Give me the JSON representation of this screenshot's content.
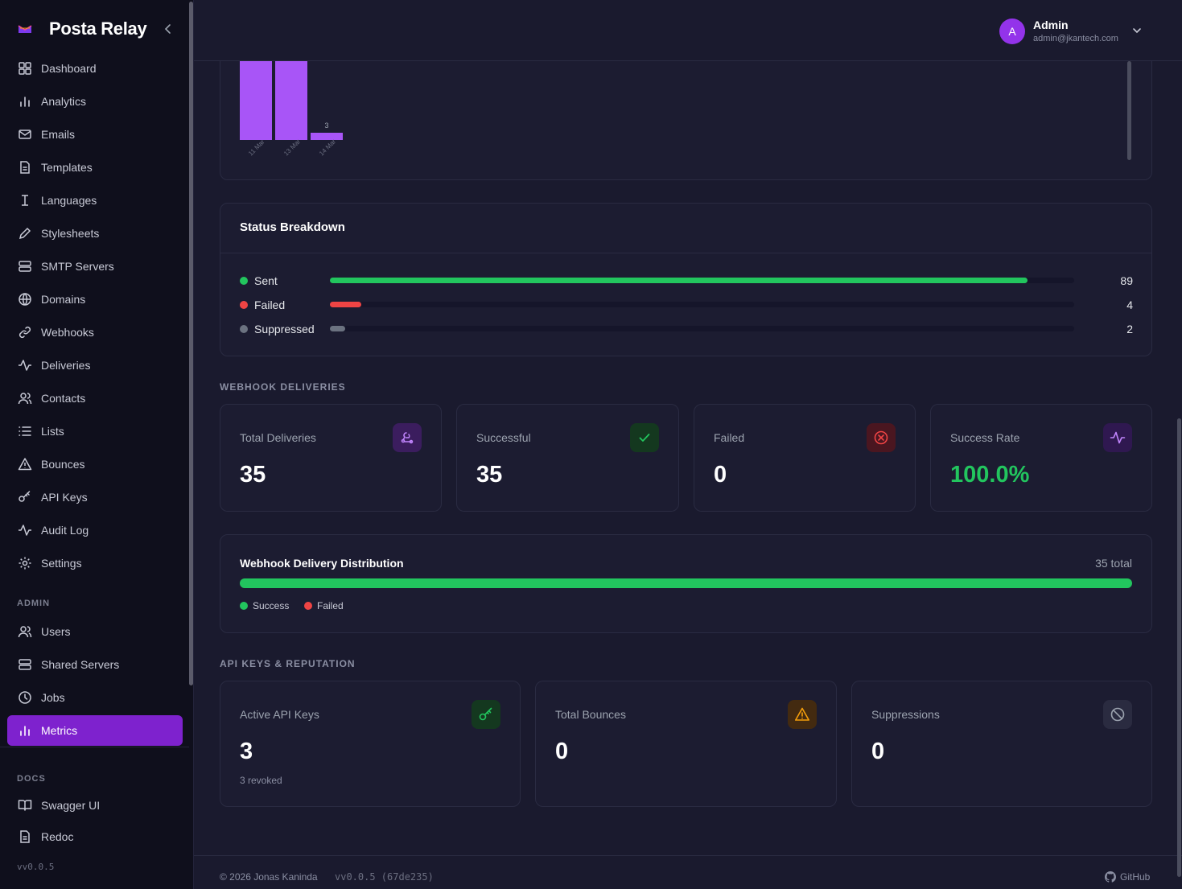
{
  "brand": {
    "name": "Posta Relay"
  },
  "sidebar": {
    "items": [
      {
        "label": "Dashboard",
        "icon": "dashboard-icon"
      },
      {
        "label": "Analytics",
        "icon": "bar-chart-icon"
      },
      {
        "label": "Emails",
        "icon": "mail-icon"
      },
      {
        "label": "Templates",
        "icon": "file-text-icon"
      },
      {
        "label": "Languages",
        "icon": "text-cursor-icon"
      },
      {
        "label": "Stylesheets",
        "icon": "pen-icon"
      },
      {
        "label": "SMTP Servers",
        "icon": "server-icon"
      },
      {
        "label": "Domains",
        "icon": "globe-icon"
      },
      {
        "label": "Webhooks",
        "icon": "link-icon"
      },
      {
        "label": "Deliveries",
        "icon": "activity-icon"
      },
      {
        "label": "Contacts",
        "icon": "users-icon"
      },
      {
        "label": "Lists",
        "icon": "list-icon"
      },
      {
        "label": "Bounces",
        "icon": "alert-triangle-icon"
      },
      {
        "label": "API Keys",
        "icon": "key-icon"
      },
      {
        "label": "Audit Log",
        "icon": "activity-icon"
      },
      {
        "label": "Settings",
        "icon": "gear-icon"
      }
    ],
    "admin_label": "ADMIN",
    "admin_items": [
      {
        "label": "Users",
        "icon": "users-icon"
      },
      {
        "label": "Shared Servers",
        "icon": "server-icon"
      },
      {
        "label": "Jobs",
        "icon": "clock-icon"
      },
      {
        "label": "Metrics",
        "icon": "bar-chart-icon",
        "active": true
      }
    ],
    "docs_label": "DOCS",
    "docs_items": [
      {
        "label": "Swagger UI",
        "icon": "book-icon"
      },
      {
        "label": "Redoc",
        "icon": "file-text-icon"
      }
    ],
    "version": "vv0.0.5"
  },
  "header": {
    "avatar_initial": "A",
    "user_name": "Admin",
    "user_email": "admin@jkantech.com"
  },
  "chart_data": {
    "type": "bar",
    "categories": [
      "11 Mar",
      "13 Mar",
      "14 Mar"
    ],
    "values": [
      null,
      null,
      3
    ],
    "visible_data_labels": [
      "",
      "",
      "3"
    ],
    "note_visible": "bars partially scrolled out of view"
  },
  "status_breakdown": {
    "title": "Status Breakdown",
    "rows": [
      {
        "label": "Sent",
        "value": "89",
        "fraction": 0.937,
        "color": "#22c55e"
      },
      {
        "label": "Failed",
        "value": "4",
        "fraction": 0.042,
        "color": "#ef4444"
      },
      {
        "label": "Suppressed",
        "value": "2",
        "fraction": 0.021,
        "color": "#6b7280"
      }
    ]
  },
  "webhook_section": {
    "title": "WEBHOOK DELIVERIES",
    "cards": [
      {
        "label": "Total Deliveries",
        "value": "35",
        "icon": "webhook-icon",
        "color": "#ffffff"
      },
      {
        "label": "Successful",
        "value": "35",
        "icon": "check-icon",
        "color": "#ffffff"
      },
      {
        "label": "Failed",
        "value": "0",
        "icon": "x-circle-icon",
        "color": "#ffffff"
      },
      {
        "label": "Success Rate",
        "value": "100.0%",
        "icon": "activity-icon",
        "color": "#22c55e"
      }
    ]
  },
  "distribution": {
    "title": "Webhook Delivery Distribution",
    "total": "35 total",
    "success_fraction": 1.0,
    "legend": [
      {
        "label": "Success",
        "color": "#22c55e"
      },
      {
        "label": "Failed",
        "color": "#ef4444"
      }
    ]
  },
  "api_section": {
    "title": "API KEYS & REPUTATION",
    "cards": [
      {
        "label": "Active API Keys",
        "value": "3",
        "sub": "3 revoked",
        "icon": "key-icon"
      },
      {
        "label": "Total Bounces",
        "value": "0",
        "icon": "alert-triangle-icon"
      },
      {
        "label": "Suppressions",
        "value": "0",
        "icon": "ban-icon"
      }
    ]
  },
  "footer": {
    "copyright": "© 2026 Jonas Kaninda",
    "version": "vv0.0.5 (67de235)",
    "github": "GitHub"
  }
}
